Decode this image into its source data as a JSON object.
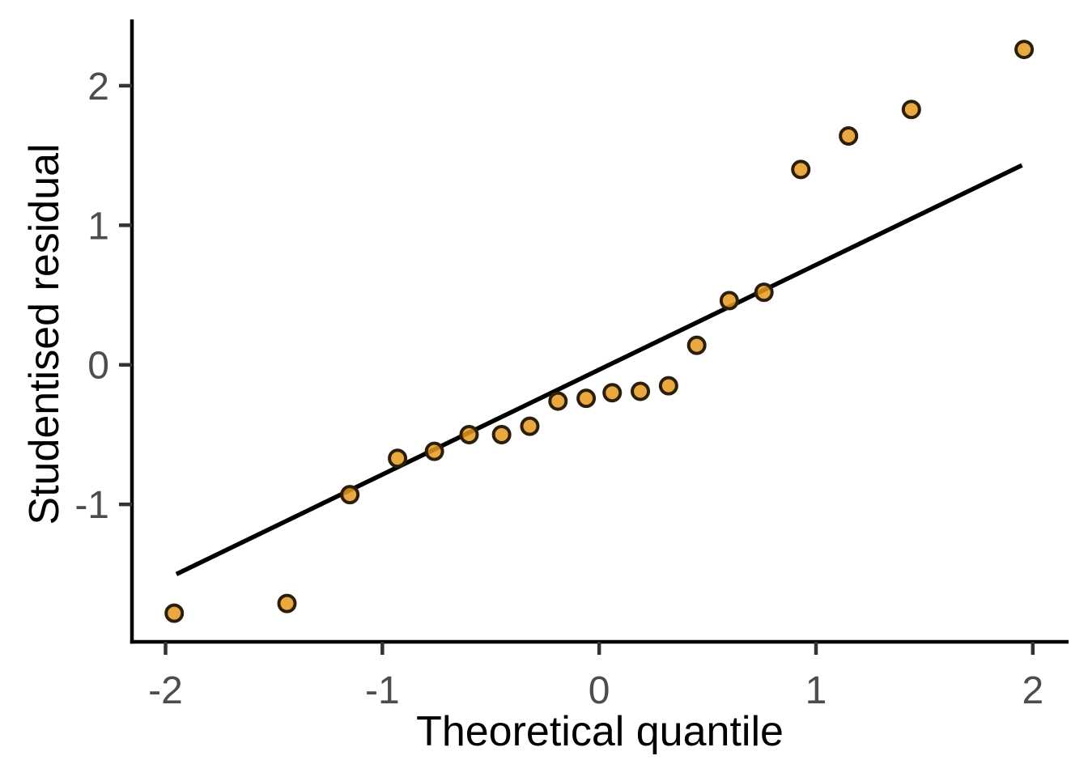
{
  "figure": {
    "background": "#FFFFFF"
  },
  "chart_data": {
    "type": "scatter",
    "title": "",
    "xlabel": "Theoretical quantile",
    "ylabel": "Studentised residual",
    "xlim": [
      -2.155,
      2.165
    ],
    "ylim": [
      -1.985,
      2.475
    ],
    "x_ticks": [
      -2,
      -1,
      0,
      1,
      2
    ],
    "y_ticks": [
      -1,
      0,
      1,
      2
    ],
    "grid": false,
    "legend": false,
    "series": [
      {
        "name": "studentised-residual-points",
        "type": "scatter",
        "x": [
          -1.96,
          -1.44,
          -1.15,
          -0.93,
          -0.76,
          -0.6,
          -0.45,
          -0.32,
          -0.19,
          -0.06,
          0.06,
          0.19,
          0.32,
          0.45,
          0.6,
          0.76,
          0.93,
          1.15,
          1.44,
          1.96
        ],
        "y": [
          -1.78,
          -1.71,
          -0.93,
          -0.67,
          -0.62,
          -0.5,
          -0.5,
          -0.44,
          -0.26,
          -0.24,
          -0.2,
          -0.19,
          -0.15,
          0.14,
          0.46,
          0.52,
          1.4,
          1.64,
          1.83,
          2.26
        ]
      },
      {
        "name": "qq-reference-line",
        "type": "line",
        "x": [
          -1.95,
          1.95
        ],
        "y": [
          -1.5,
          1.43
        ]
      }
    ],
    "style": {
      "point_fill": "#E5991F",
      "point_fill_opacity": 0.85,
      "point_stroke": "#2B1F0C",
      "line_color": "#000000",
      "axis_color": "#000000",
      "tick_color": "#333333",
      "tick_label_color": "#4D4D4D",
      "title_color": "#000000"
    }
  }
}
